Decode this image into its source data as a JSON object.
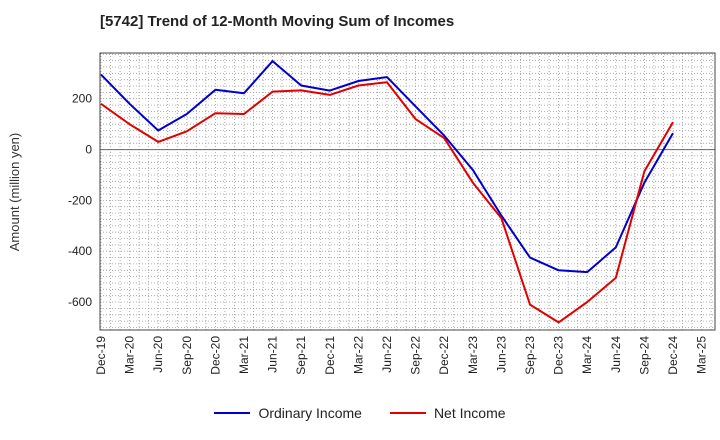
{
  "chart_data": {
    "type": "line",
    "title": "[5742]  Trend of 12-Month Moving Sum of Incomes",
    "xlabel": "",
    "ylabel": "Amount (million yen)",
    "ylim": [
      -710,
      380
    ],
    "yticks": [
      200,
      0,
      -200,
      -400,
      -600
    ],
    "categories": [
      "Dec-19",
      "Mar-20",
      "Jun-20",
      "Sep-20",
      "Dec-20",
      "Mar-21",
      "Jun-21",
      "Sep-21",
      "Dec-21",
      "Mar-22",
      "Jun-22",
      "Sep-22",
      "Dec-22",
      "Mar-23",
      "Jun-23",
      "Sep-23",
      "Dec-23",
      "Mar-24",
      "Jun-24",
      "Sep-24",
      "Dec-24",
      "Mar-25"
    ],
    "grid": true,
    "legend_position": "bottom-center",
    "series": [
      {
        "name": "Ordinary Income",
        "color": "#0000cc",
        "values": [
          295,
          180,
          75,
          140,
          235,
          222,
          348,
          252,
          232,
          270,
          285,
          170,
          55,
          -80,
          -260,
          -425,
          -475,
          -482,
          -385,
          -130,
          65,
          null
        ]
      },
      {
        "name": "Net Income",
        "color": "#e00000",
        "values": [
          180,
          100,
          30,
          72,
          143,
          140,
          228,
          233,
          215,
          252,
          265,
          120,
          45,
          -130,
          -270,
          -610,
          -680,
          -600,
          -505,
          -85,
          108,
          null
        ]
      }
    ]
  }
}
